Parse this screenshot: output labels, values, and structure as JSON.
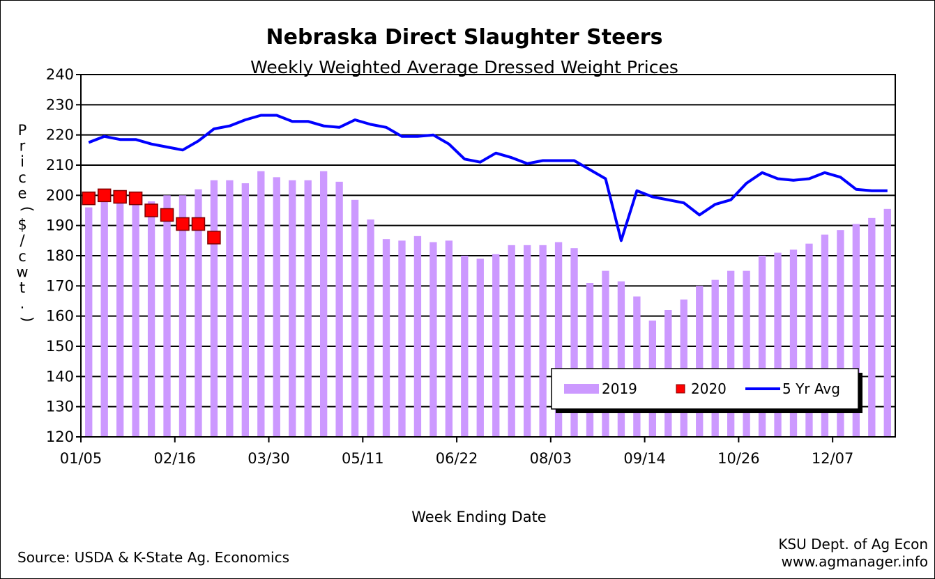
{
  "chart_data": {
    "type": "bar",
    "title": "Nebraska Direct Slaughter Steers",
    "subtitle": "Weekly Weighted Average Dressed Weight Prices",
    "xlabel": "Week Ending Date",
    "ylabel": "Price ($/cwt.)",
    "ylim": [
      120,
      240
    ],
    "yticks": [
      120,
      130,
      140,
      150,
      160,
      170,
      180,
      190,
      200,
      210,
      220,
      230,
      240
    ],
    "x_tick_labels": [
      "01/05",
      "02/16",
      "03/30",
      "05/11",
      "06/22",
      "08/03",
      "09/14",
      "10/26",
      "12/07"
    ],
    "grid": "horizontal",
    "legend_position": "bottom-right",
    "weeks": 52,
    "series": [
      {
        "name": "2019",
        "type": "bar",
        "color": "#cc99ff",
        "values": [
          196,
          199,
          200,
          199,
          198,
          200,
          200,
          202,
          205,
          205,
          204,
          208,
          206,
          205,
          205,
          208,
          204.5,
          198.5,
          192,
          185.5,
          185,
          186.5,
          184.5,
          185,
          180,
          179,
          180.5,
          183.5,
          183.5,
          183.5,
          184.5,
          182.5,
          171,
          175,
          171.5,
          166.5,
          158.5,
          162,
          165.5,
          170,
          172,
          175,
          175,
          180,
          181,
          182,
          184,
          187,
          188.5,
          190.5,
          192.5,
          195.5
        ]
      },
      {
        "name": "2020",
        "type": "marker",
        "color": "#ff0000",
        "values": [
          199,
          200,
          199.5,
          199,
          195,
          193.5,
          190.5,
          190.5,
          186
        ]
      },
      {
        "name": "5 Yr Avg",
        "type": "line",
        "color": "#0000ff",
        "values": [
          217.5,
          219.5,
          218.5,
          218.5,
          217,
          216,
          215,
          218,
          222,
          223,
          225,
          226.5,
          226.5,
          224.5,
          224.5,
          223,
          222.5,
          225,
          223.5,
          222.5,
          219.5,
          219.5,
          220,
          217,
          212,
          211,
          214,
          212.5,
          210.5,
          211.5,
          211.5,
          211.5,
          208.5,
          205.5,
          185,
          201.5,
          199.5,
          198.5,
          197.5,
          193.5,
          197,
          198.5,
          204,
          207.5,
          205.5,
          205,
          205.5,
          207.5,
          206,
          202,
          201.5,
          201.5
        ]
      }
    ]
  },
  "footer": {
    "source": "Source:  USDA & K-State Ag. Economics",
    "credit_line1": "KSU Dept. of Ag Econ",
    "credit_line2": "www.agmanager.info"
  }
}
